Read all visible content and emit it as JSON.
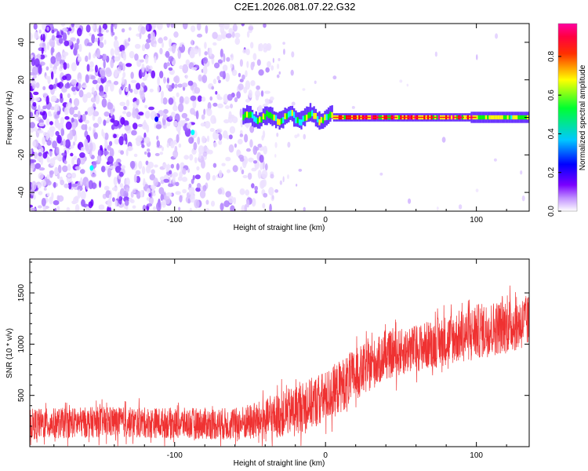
{
  "figure": {
    "title": "C2E1.2026.081.07.22.G32"
  },
  "chart_data": [
    {
      "type": "heatmap",
      "title": "C2E1.2026.081.07.22.G32",
      "xlabel": "Height of straight line (km)",
      "ylabel": "Frequency (Hz)",
      "xlim": [
        -196,
        135
      ],
      "ylim": [
        -50,
        50
      ],
      "xticks": [
        -100,
        0,
        100
      ],
      "yticks": [
        -40,
        -20,
        0,
        20,
        40
      ],
      "colorbar": {
        "label": "Normalized spectral amplitude",
        "range": [
          0,
          0.97
        ],
        "ticks": [
          0.0,
          0.2,
          0.4,
          0.6,
          0.8
        ],
        "colormap": [
          "#ffffff",
          "#7a00ff",
          "#0000ff",
          "#00ffff",
          "#00ff00",
          "#ffff00",
          "#ff0000",
          "#ff00a0"
        ]
      },
      "features": {
        "noise_region_x": [
          -196,
          -35
        ],
        "sparse_noise_region_x": [
          -35,
          135
        ],
        "tone_start_x": -55,
        "tone_frequency_hz": 0,
        "tone_peak_segment_x": [
          5,
          100
        ],
        "tone_step_x": 96
      }
    },
    {
      "type": "line",
      "xlabel": "Height of straight line (km)",
      "ylabel": "SNR (10 * v/v)",
      "xlim": [
        -196,
        135
      ],
      "ylim": [
        0,
        1830
      ],
      "xticks": [
        -100,
        0,
        100
      ],
      "yticks": [
        500,
        1000,
        1500
      ],
      "series": [
        {
          "name": "SNR",
          "color": "#ef3131",
          "trend_x": [
            -196,
            -150,
            -100,
            -60,
            -40,
            -20,
            0,
            20,
            40,
            60,
            80,
            100,
            120,
            135
          ],
          "trend_y": [
            220,
            240,
            230,
            220,
            260,
            360,
            480,
            700,
            880,
            960,
            1040,
            1120,
            1180,
            1220
          ],
          "spread": [
            150,
            150,
            150,
            160,
            200,
            240,
            260,
            260,
            230,
            230,
            250,
            270,
            270,
            260
          ]
        }
      ]
    }
  ],
  "colors": {
    "line": "#ef3131",
    "axes": "#000000"
  }
}
